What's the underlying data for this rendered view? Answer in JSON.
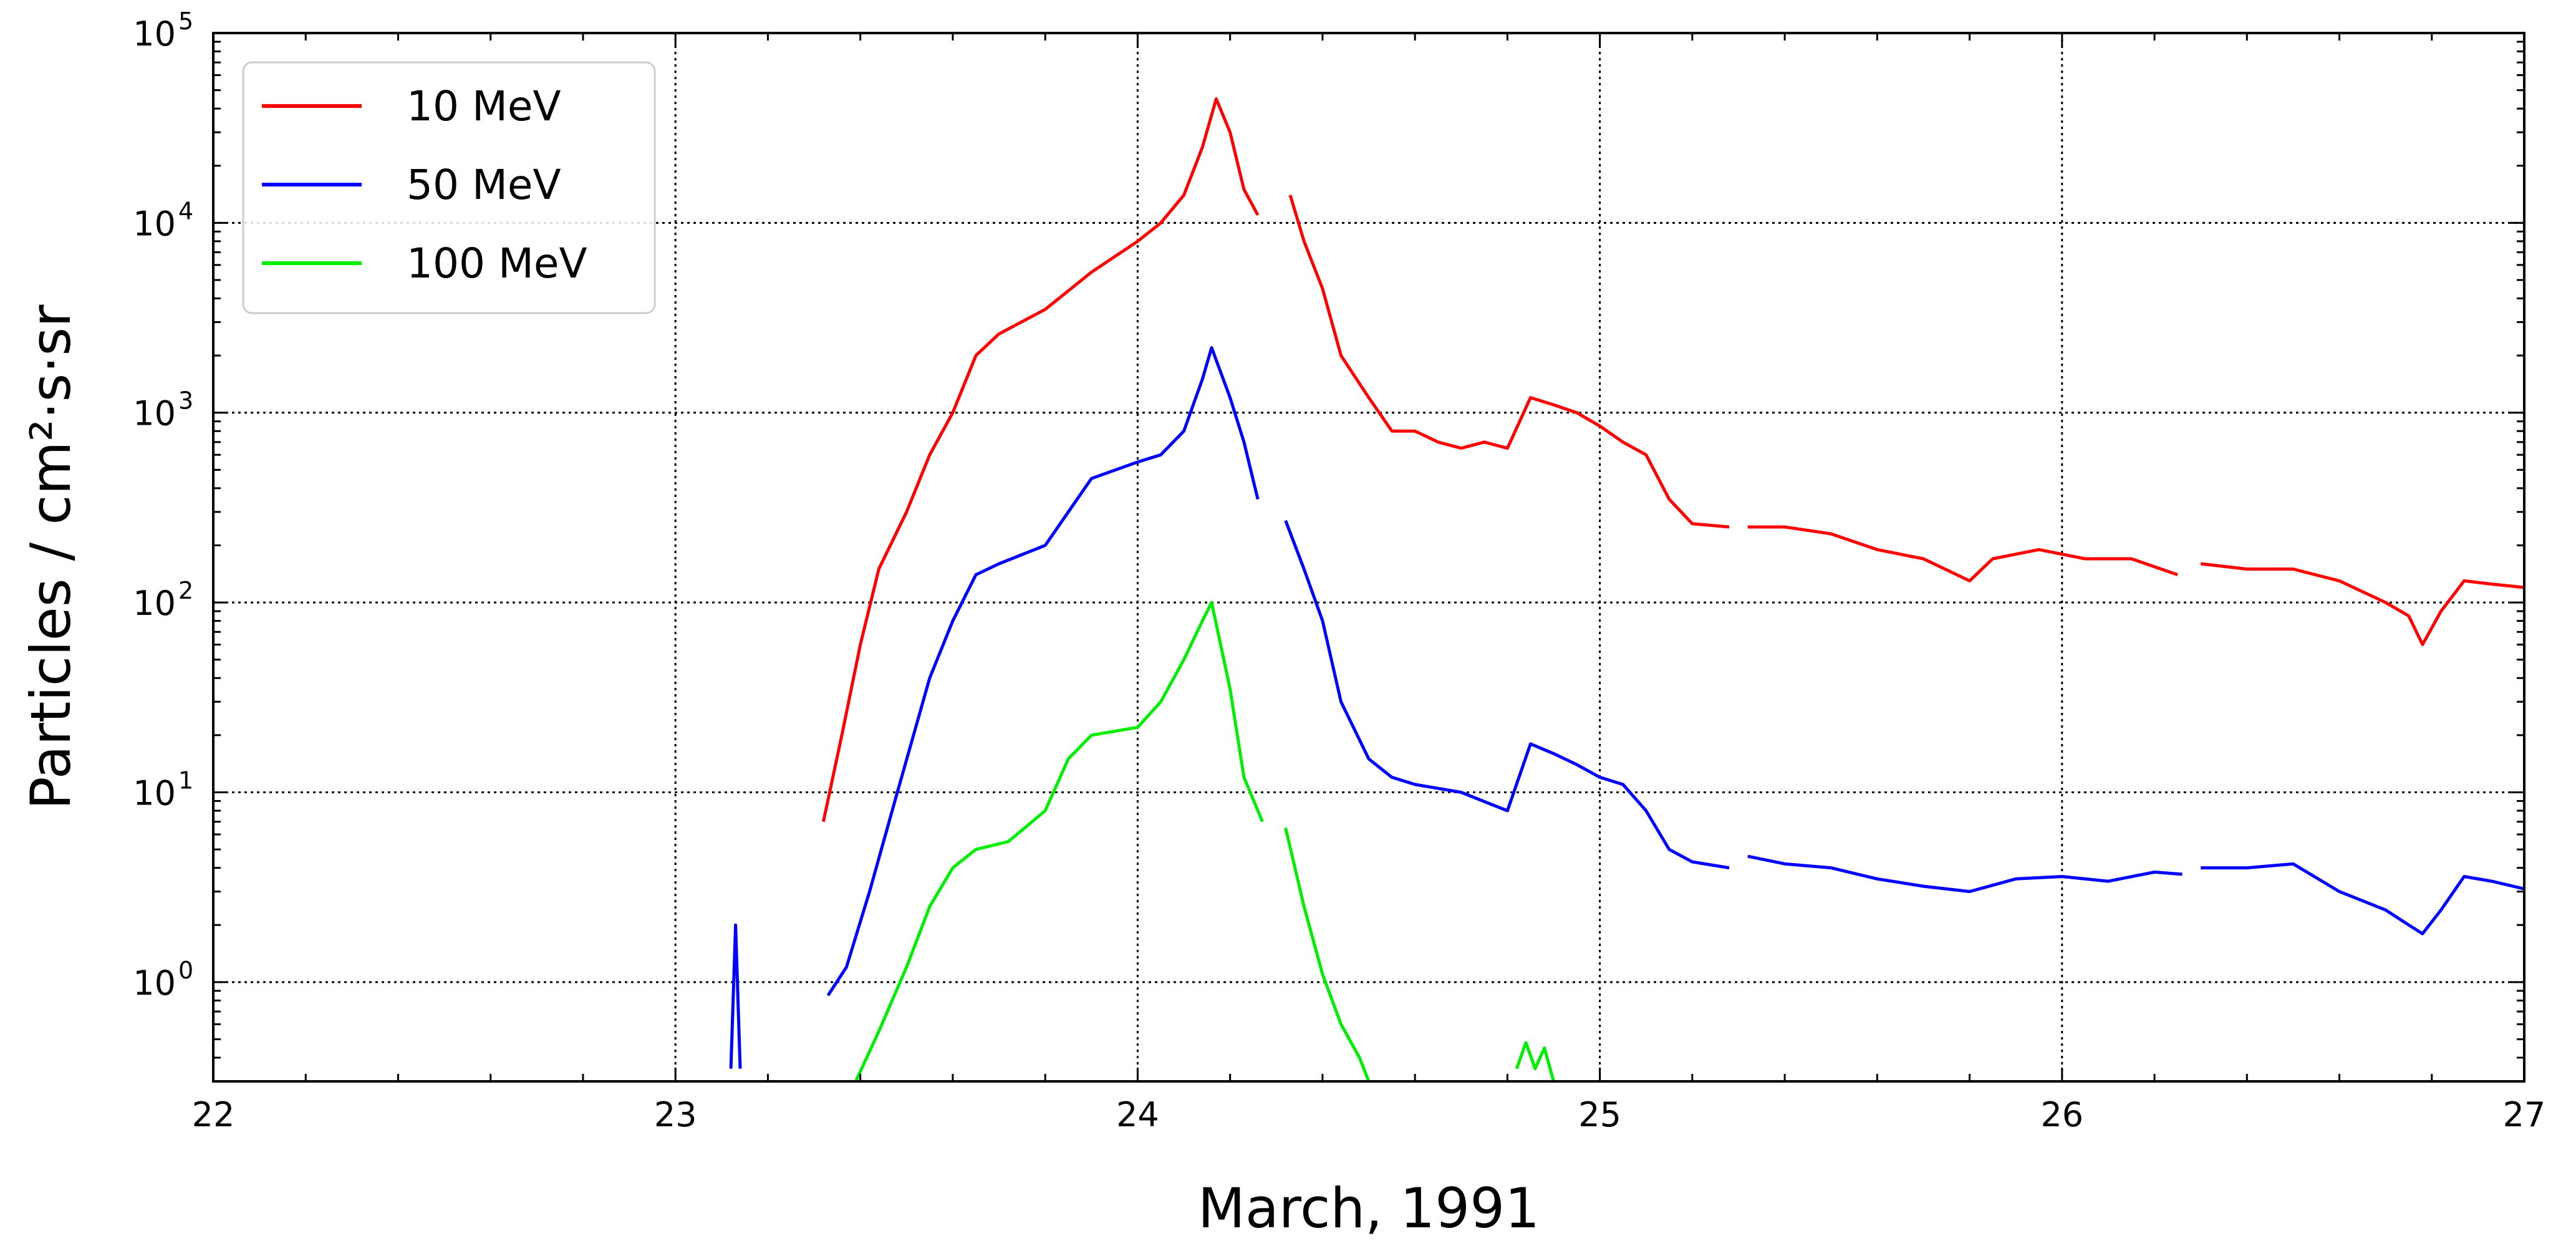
{
  "chart_data": {
    "type": "line",
    "xlabel": "March, 1991",
    "ylabel": "Particles / cm²·s·sr",
    "xlim": [
      22,
      27
    ],
    "ylim": [
      0.3,
      100000
    ],
    "yscale": "log",
    "grid": true,
    "legend_position": "top-left",
    "x_ticks": [
      "22",
      "23",
      "24",
      "25",
      "26",
      "27"
    ],
    "y_ticks": [
      {
        "base": "10",
        "exp": "0",
        "value": 1
      },
      {
        "base": "10",
        "exp": "1",
        "value": 10
      },
      {
        "base": "10",
        "exp": "2",
        "value": 100
      },
      {
        "base": "10",
        "exp": "3",
        "value": 1000
      },
      {
        "base": "10",
        "exp": "4",
        "value": 10000
      },
      {
        "base": "10",
        "exp": "5",
        "value": 100000
      }
    ],
    "series": [
      {
        "name": "10 MeV",
        "color": "#ff0000",
        "segments": [
          [
            [
              23.32,
              7
            ],
            [
              23.36,
              20
            ],
            [
              23.4,
              60
            ],
            [
              23.44,
              150
            ],
            [
              23.5,
              300
            ],
            [
              23.55,
              600
            ],
            [
              23.6,
              1000
            ],
            [
              23.65,
              2000
            ],
            [
              23.7,
              2600
            ],
            [
              23.8,
              3500
            ],
            [
              23.9,
              5500
            ],
            [
              24.0,
              8000
            ],
            [
              24.05,
              10000
            ],
            [
              24.1,
              14000
            ],
            [
              24.14,
              25000
            ],
            [
              24.17,
              45000
            ],
            [
              24.2,
              30000
            ],
            [
              24.23,
              15000
            ],
            [
              24.26,
              11000
            ]
          ],
          [
            [
              24.33,
              14000
            ],
            [
              24.36,
              8000
            ],
            [
              24.4,
              4500
            ],
            [
              24.44,
              2000
            ],
            [
              24.5,
              1200
            ],
            [
              24.55,
              800
            ],
            [
              24.6,
              800
            ],
            [
              24.65,
              700
            ],
            [
              24.7,
              650
            ],
            [
              24.75,
              700
            ],
            [
              24.8,
              650
            ],
            [
              24.85,
              1200
            ],
            [
              24.9,
              1100
            ],
            [
              24.95,
              1000
            ],
            [
              25.0,
              850
            ],
            [
              25.05,
              700
            ],
            [
              25.1,
              600
            ],
            [
              25.15,
              350
            ],
            [
              25.2,
              260
            ],
            [
              25.28,
              250
            ]
          ],
          [
            [
              25.32,
              250
            ],
            [
              25.4,
              250
            ],
            [
              25.5,
              230
            ],
            [
              25.6,
              190
            ],
            [
              25.7,
              170
            ],
            [
              25.8,
              130
            ],
            [
              25.85,
              170
            ],
            [
              25.95,
              190
            ],
            [
              26.05,
              170
            ],
            [
              26.15,
              170
            ],
            [
              26.25,
              140
            ]
          ],
          [
            [
              26.3,
              160
            ],
            [
              26.4,
              150
            ],
            [
              26.5,
              150
            ],
            [
              26.6,
              130
            ],
            [
              26.7,
              100
            ],
            [
              26.75,
              85
            ],
            [
              26.78,
              60
            ],
            [
              26.82,
              90
            ],
            [
              26.87,
              130
            ],
            [
              26.93,
              125
            ],
            [
              27.0,
              120
            ]
          ]
        ]
      },
      {
        "name": "50 MeV",
        "color": "#0000ff",
        "segments": [
          [
            [
              23.12,
              0.35
            ],
            [
              23.13,
              2.0
            ],
            [
              23.14,
              0.35
            ]
          ],
          [
            [
              23.33,
              0.85
            ],
            [
              23.37,
              1.2
            ],
            [
              23.42,
              3
            ],
            [
              23.48,
              10
            ],
            [
              23.55,
              40
            ],
            [
              23.6,
              80
            ],
            [
              23.65,
              140
            ],
            [
              23.7,
              160
            ],
            [
              23.8,
              200
            ],
            [
              23.85,
              300
            ],
            [
              23.9,
              450
            ],
            [
              24.0,
              550
            ],
            [
              24.05,
              600
            ],
            [
              24.1,
              800
            ],
            [
              24.14,
              1500
            ],
            [
              24.16,
              2200
            ],
            [
              24.2,
              1200
            ],
            [
              24.23,
              700
            ],
            [
              24.26,
              350
            ]
          ],
          [
            [
              24.32,
              270
            ],
            [
              24.36,
              150
            ],
            [
              24.4,
              80
            ],
            [
              24.44,
              30
            ],
            [
              24.5,
              15
            ],
            [
              24.55,
              12
            ],
            [
              24.6,
              11
            ],
            [
              24.7,
              10
            ],
            [
              24.8,
              8
            ],
            [
              24.85,
              18
            ],
            [
              24.9,
              16
            ],
            [
              24.95,
              14
            ],
            [
              25.0,
              12
            ],
            [
              25.05,
              11
            ],
            [
              25.1,
              8
            ],
            [
              25.15,
              5
            ],
            [
              25.2,
              4.3
            ],
            [
              25.28,
              4
            ]
          ],
          [
            [
              25.32,
              4.6
            ],
            [
              25.4,
              4.2
            ],
            [
              25.5,
              4.0
            ],
            [
              25.6,
              3.5
            ],
            [
              25.7,
              3.2
            ],
            [
              25.8,
              3.0
            ],
            [
              25.9,
              3.5
            ],
            [
              26.0,
              3.6
            ],
            [
              26.1,
              3.4
            ],
            [
              26.2,
              3.8
            ],
            [
              26.26,
              3.7
            ]
          ],
          [
            [
              26.3,
              4
            ],
            [
              26.4,
              4
            ],
            [
              26.5,
              4.2
            ],
            [
              26.6,
              3.0
            ],
            [
              26.7,
              2.4
            ],
            [
              26.75,
              2.0
            ],
            [
              26.78,
              1.8
            ],
            [
              26.82,
              2.4
            ],
            [
              26.87,
              3.6
            ],
            [
              26.93,
              3.4
            ],
            [
              27.0,
              3.1
            ]
          ]
        ]
      },
      {
        "name": "100 MeV",
        "color": "#00ee00",
        "segments": [
          [
            [
              23.39,
              0.3
            ],
            [
              23.44,
              0.55
            ],
            [
              23.5,
              1.2
            ],
            [
              23.55,
              2.5
            ],
            [
              23.6,
              4
            ],
            [
              23.65,
              5
            ],
            [
              23.72,
              5.5
            ],
            [
              23.8,
              8
            ],
            [
              23.85,
              15
            ],
            [
              23.9,
              20
            ],
            [
              24.0,
              22
            ],
            [
              24.05,
              30
            ],
            [
              24.1,
              50
            ],
            [
              24.14,
              80
            ],
            [
              24.16,
              100
            ],
            [
              24.2,
              35
            ],
            [
              24.23,
              12
            ],
            [
              24.27,
              7
            ]
          ],
          [
            [
              24.32,
              6.5
            ],
            [
              24.36,
              2.5
            ],
            [
              24.4,
              1.1
            ],
            [
              24.44,
              0.6
            ],
            [
              24.48,
              0.4
            ],
            [
              24.5,
              0.3
            ]
          ],
          [
            [
              24.82,
              0.35
            ],
            [
              24.84,
              0.48
            ],
            [
              24.86,
              0.35
            ],
            [
              24.88,
              0.45
            ],
            [
              24.9,
              0.3
            ]
          ]
        ]
      }
    ]
  }
}
